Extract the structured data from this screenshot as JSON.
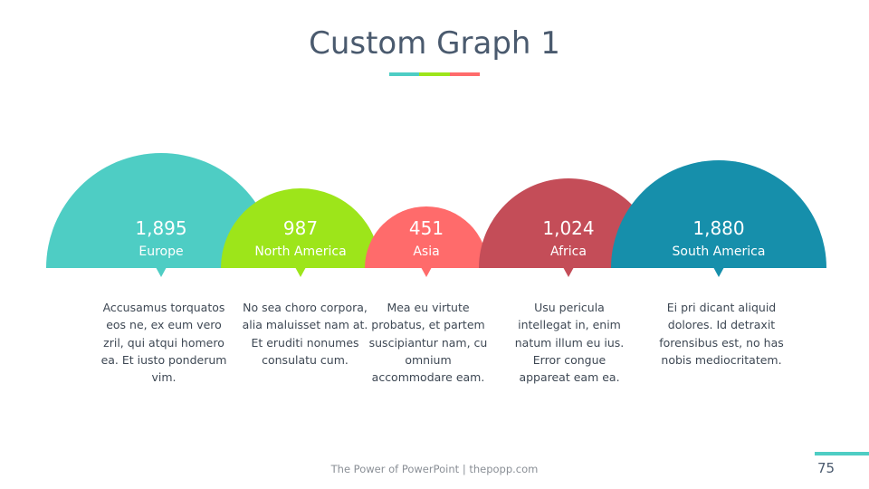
{
  "title": "Custom Graph 1",
  "colors": {
    "teal": "#4ecdc4",
    "green": "#9de51a",
    "salmon": "#ff6b6b",
    "red": "#c44d58",
    "blue": "#168fab",
    "title": "#4a5a6e"
  },
  "chart_data": {
    "type": "semicircle-bubble",
    "series": [
      {
        "name": "Europe",
        "value": 1895,
        "label": "1,895",
        "color": "#4ecdc4",
        "description": "Accusamus torquatos eos ne, ex eum vero zril, qui atqui homero ea. Et iusto ponderum vim."
      },
      {
        "name": "North America",
        "value": 987,
        "label": "987",
        "color": "#9de51a",
        "description": "No sea choro corpora, alia maluisset nam at. Et eruditi nonumes consulatu cum."
      },
      {
        "name": "Asia",
        "value": 451,
        "label": "451",
        "color": "#ff6b6b",
        "description": "Mea eu virtute probatus, et partem suscipiantur nam, cu omnium accommodare eam."
      },
      {
        "name": "Africa",
        "value": 1024,
        "label": "1,024",
        "color": "#c44d58",
        "description": "Usu pericula intellegat in, enim natum illum eu ius. Error congue appareat eam ea."
      },
      {
        "name": "South America",
        "value": 1880,
        "label": "1,880",
        "color": "#168fab",
        "description": "Ei pri dicant aliquid dolores. Id detraxit forensibus est, no has nobis mediocritatem."
      }
    ]
  },
  "footer": {
    "text": "The Power of PowerPoint | thepopp.com",
    "page_number": "75"
  }
}
